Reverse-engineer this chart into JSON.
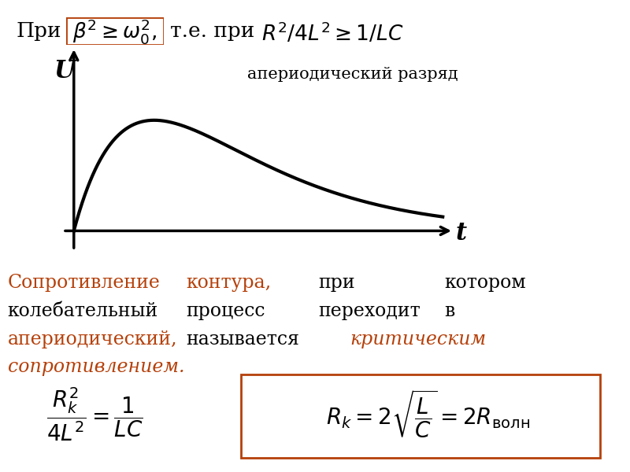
{
  "bg_color": "#ffffff",
  "orange_color": "#b5400a",
  "black_color": "#000000",
  "top_prefix": "При",
  "top_box_formula": "$\\beta^2 \\geq \\omega_0^2,$",
  "top_mid": "т.е. при",
  "top_right_formula": "$R^2 / 4L^2 \\geq 1/ LC$",
  "graph_U": "U",
  "graph_t": "t",
  "graph_note": "апериодический разряд",
  "line1_col1": "Сопротивление",
  "line1_col2": "контура,",
  "line1_col3": "при",
  "line1_col4": "котором",
  "line2_col1": "колебательный",
  "line2_col2": "процесс",
  "line2_col3": "переходит",
  "line2_col4": "в",
  "line3_col1": "апериодический,",
  "line3_col2": "называется",
  "line3_col3": "критическим",
  "line4_col1": "сопротивлением.",
  "formula_left": "$\\dfrac{R_k^2}{4L^2} = \\dfrac{1}{LC}$",
  "formula_right": "$R_k = 2\\sqrt{\\dfrac{L}{C}} = 2R_{\\text{волн}}$",
  "font_size_top": 19,
  "font_size_text": 17,
  "font_size_formula": 20,
  "curve_beta": 0.45,
  "curve_scale": 2.8
}
